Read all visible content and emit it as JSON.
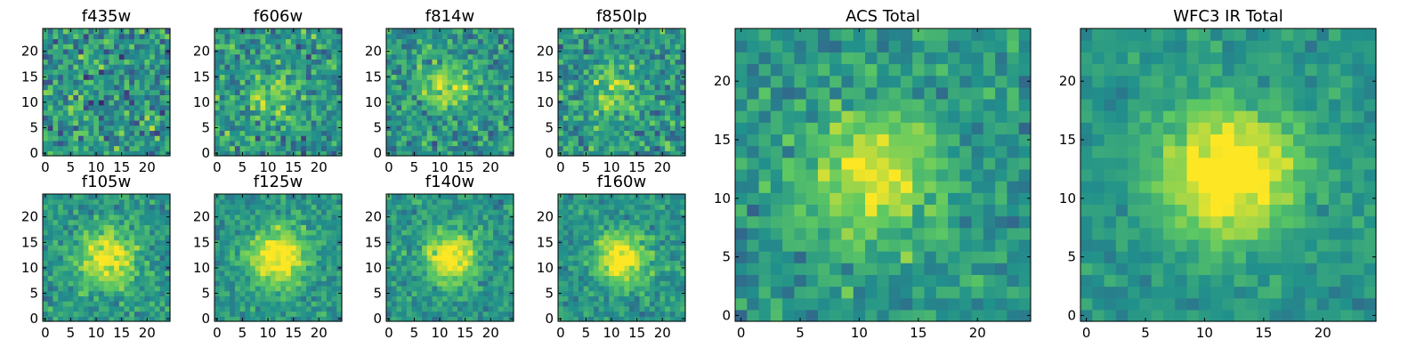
{
  "chart_data": [
    {
      "type": "heatmap",
      "title": "f435w",
      "xticks": [
        "0",
        "5",
        "10",
        "15",
        "20"
      ],
      "yticks": [
        "0",
        "5",
        "10",
        "15",
        "20"
      ],
      "xlim": [
        0,
        25
      ],
      "ylim": [
        0,
        25
      ],
      "grid_size": 25,
      "source_profile": {
        "center_x": 12,
        "center_y": 12,
        "peak": 0.0,
        "sigma": 4,
        "noise": 0.5
      }
    },
    {
      "type": "heatmap",
      "title": "f606w",
      "xticks": [
        "0",
        "5",
        "10",
        "15",
        "20"
      ],
      "yticks": [
        "0",
        "5",
        "10",
        "15",
        "20"
      ],
      "xlim": [
        0,
        25
      ],
      "ylim": [
        0,
        25
      ],
      "grid_size": 25,
      "source_profile": {
        "center_x": 11,
        "center_y": 12,
        "peak": 0.25,
        "sigma": 3,
        "noise": 0.45
      }
    },
    {
      "type": "heatmap",
      "title": "f814w",
      "xticks": [
        "0",
        "5",
        "10",
        "15",
        "20"
      ],
      "yticks": [
        "0",
        "5",
        "10",
        "15",
        "20"
      ],
      "xlim": [
        0,
        25
      ],
      "ylim": [
        0,
        25
      ],
      "grid_size": 25,
      "source_profile": {
        "center_x": 11,
        "center_y": 13,
        "peak": 0.35,
        "sigma": 3.5,
        "noise": 0.4
      }
    },
    {
      "type": "heatmap",
      "title": "f850lp",
      "xticks": [
        "0",
        "5",
        "10",
        "15",
        "20"
      ],
      "yticks": [
        "0",
        "5",
        "10",
        "15",
        "20"
      ],
      "xlim": [
        0,
        25
      ],
      "ylim": [
        0,
        25
      ],
      "grid_size": 25,
      "source_profile": {
        "center_x": 11,
        "center_y": 12,
        "peak": 0.3,
        "sigma": 3.5,
        "noise": 0.42
      }
    },
    {
      "type": "heatmap",
      "title": "f105w",
      "xticks": [
        "0",
        "5",
        "10",
        "15",
        "20"
      ],
      "yticks": [
        "0",
        "5",
        "10",
        "15",
        "20"
      ],
      "xlim": [
        0,
        25
      ],
      "ylim": [
        0,
        25
      ],
      "grid_size": 25,
      "source_profile": {
        "center_x": 12,
        "center_y": 12,
        "peak": 0.5,
        "sigma": 4,
        "noise": 0.3
      }
    },
    {
      "type": "heatmap",
      "title": "f125w",
      "xticks": [
        "0",
        "5",
        "10",
        "15",
        "20"
      ],
      "yticks": [
        "0",
        "5",
        "10",
        "15",
        "20"
      ],
      "xlim": [
        0,
        25
      ],
      "ylim": [
        0,
        25
      ],
      "grid_size": 25,
      "source_profile": {
        "center_x": 12,
        "center_y": 12,
        "peak": 0.55,
        "sigma": 4,
        "noise": 0.28
      }
    },
    {
      "type": "heatmap",
      "title": "f140w",
      "xticks": [
        "0",
        "5",
        "10",
        "15",
        "20"
      ],
      "yticks": [
        "0",
        "5",
        "10",
        "15",
        "20"
      ],
      "xlim": [
        0,
        25
      ],
      "ylim": [
        0,
        25
      ],
      "grid_size": 25,
      "source_profile": {
        "center_x": 12,
        "center_y": 12,
        "peak": 0.55,
        "sigma": 3.5,
        "noise": 0.28
      }
    },
    {
      "type": "heatmap",
      "title": "f160w",
      "xticks": [
        "0",
        "5",
        "10",
        "15",
        "20"
      ],
      "yticks": [
        "0",
        "5",
        "10",
        "15",
        "20"
      ],
      "xlim": [
        0,
        25
      ],
      "ylim": [
        0,
        25
      ],
      "grid_size": 25,
      "source_profile": {
        "center_x": 12,
        "center_y": 12,
        "peak": 0.55,
        "sigma": 3.5,
        "noise": 0.28
      }
    },
    {
      "type": "heatmap",
      "title": "ACS Total",
      "xticks": [
        "0",
        "5",
        "10",
        "15",
        "20"
      ],
      "yticks": [
        "0",
        "5",
        "10",
        "15",
        "20"
      ],
      "xlim": [
        0,
        25
      ],
      "ylim": [
        0,
        25
      ],
      "grid_size": 25,
      "source_profile": {
        "center_x": 11,
        "center_y": 12,
        "peak": 0.45,
        "sigma": 4,
        "noise": 0.3
      }
    },
    {
      "type": "heatmap",
      "title": "WFC3 IR Total",
      "xticks": [
        "0",
        "5",
        "10",
        "15",
        "20"
      ],
      "yticks": [
        "0",
        "5",
        "10",
        "15",
        "20"
      ],
      "xlim": [
        0,
        25
      ],
      "ylim": [
        0,
        25
      ],
      "grid_size": 25,
      "source_profile": {
        "center_x": 12,
        "center_y": 12,
        "peak": 0.6,
        "sigma": 4,
        "noise": 0.2
      }
    }
  ],
  "colormap": [
    "#440154",
    "#3b528b",
    "#21918c",
    "#5ec962",
    "#fde725"
  ]
}
